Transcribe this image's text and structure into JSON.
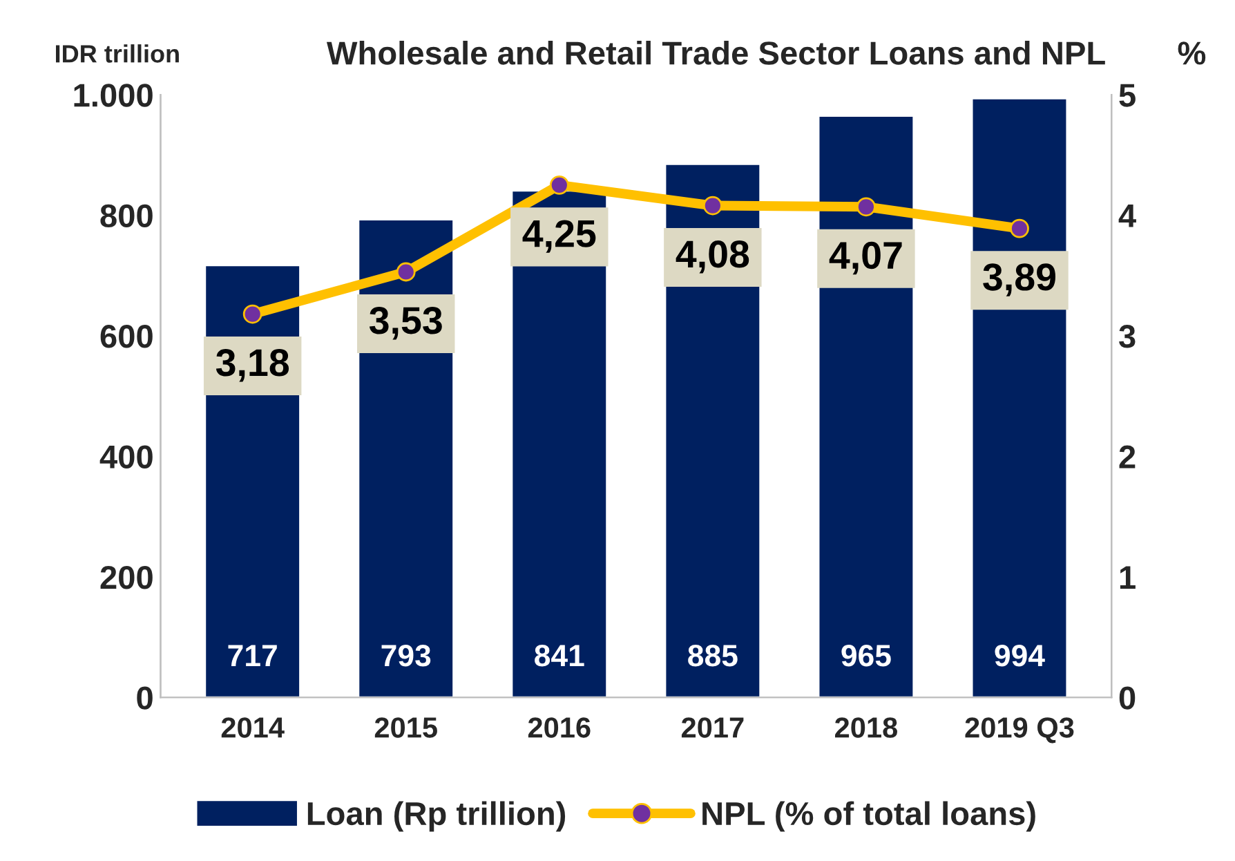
{
  "chart_data": {
    "type": "bar",
    "title": "Wholesale and Retail Trade Sector Loans and NPL",
    "ylabel": "IDR trillion",
    "y2label": "%",
    "categories": [
      "2014",
      "2015",
      "2016",
      "2017",
      "2018",
      "2019 Q3"
    ],
    "series": [
      {
        "name": "Loan (Rp trillion)",
        "color": "#002060",
        "values": [
          717,
          793,
          841,
          885,
          965,
          994
        ],
        "value_labels": [
          "717",
          "793",
          "841",
          "885",
          "965",
          "994"
        ]
      },
      {
        "name": "NPL (% of total loans)",
        "type": "line",
        "axis": "y2",
        "color": "#ffc000",
        "marker": "circle",
        "values": [
          3.18,
          3.53,
          4.25,
          4.08,
          4.07,
          3.89
        ],
        "value_labels": [
          "3,18",
          "3,53",
          "4,25",
          "4,08",
          "4,07",
          "3,89"
        ]
      }
    ],
    "ylim": [
      0,
      1000
    ],
    "yticks": [
      0,
      200,
      400,
      600,
      800,
      {
        "value": 1000,
        "label": "1.000"
      }
    ],
    "y2lim": [
      0,
      5
    ],
    "y2ticks": [
      0,
      1,
      2,
      3,
      4,
      5
    ],
    "grid": false,
    "legend": "bottom"
  }
}
